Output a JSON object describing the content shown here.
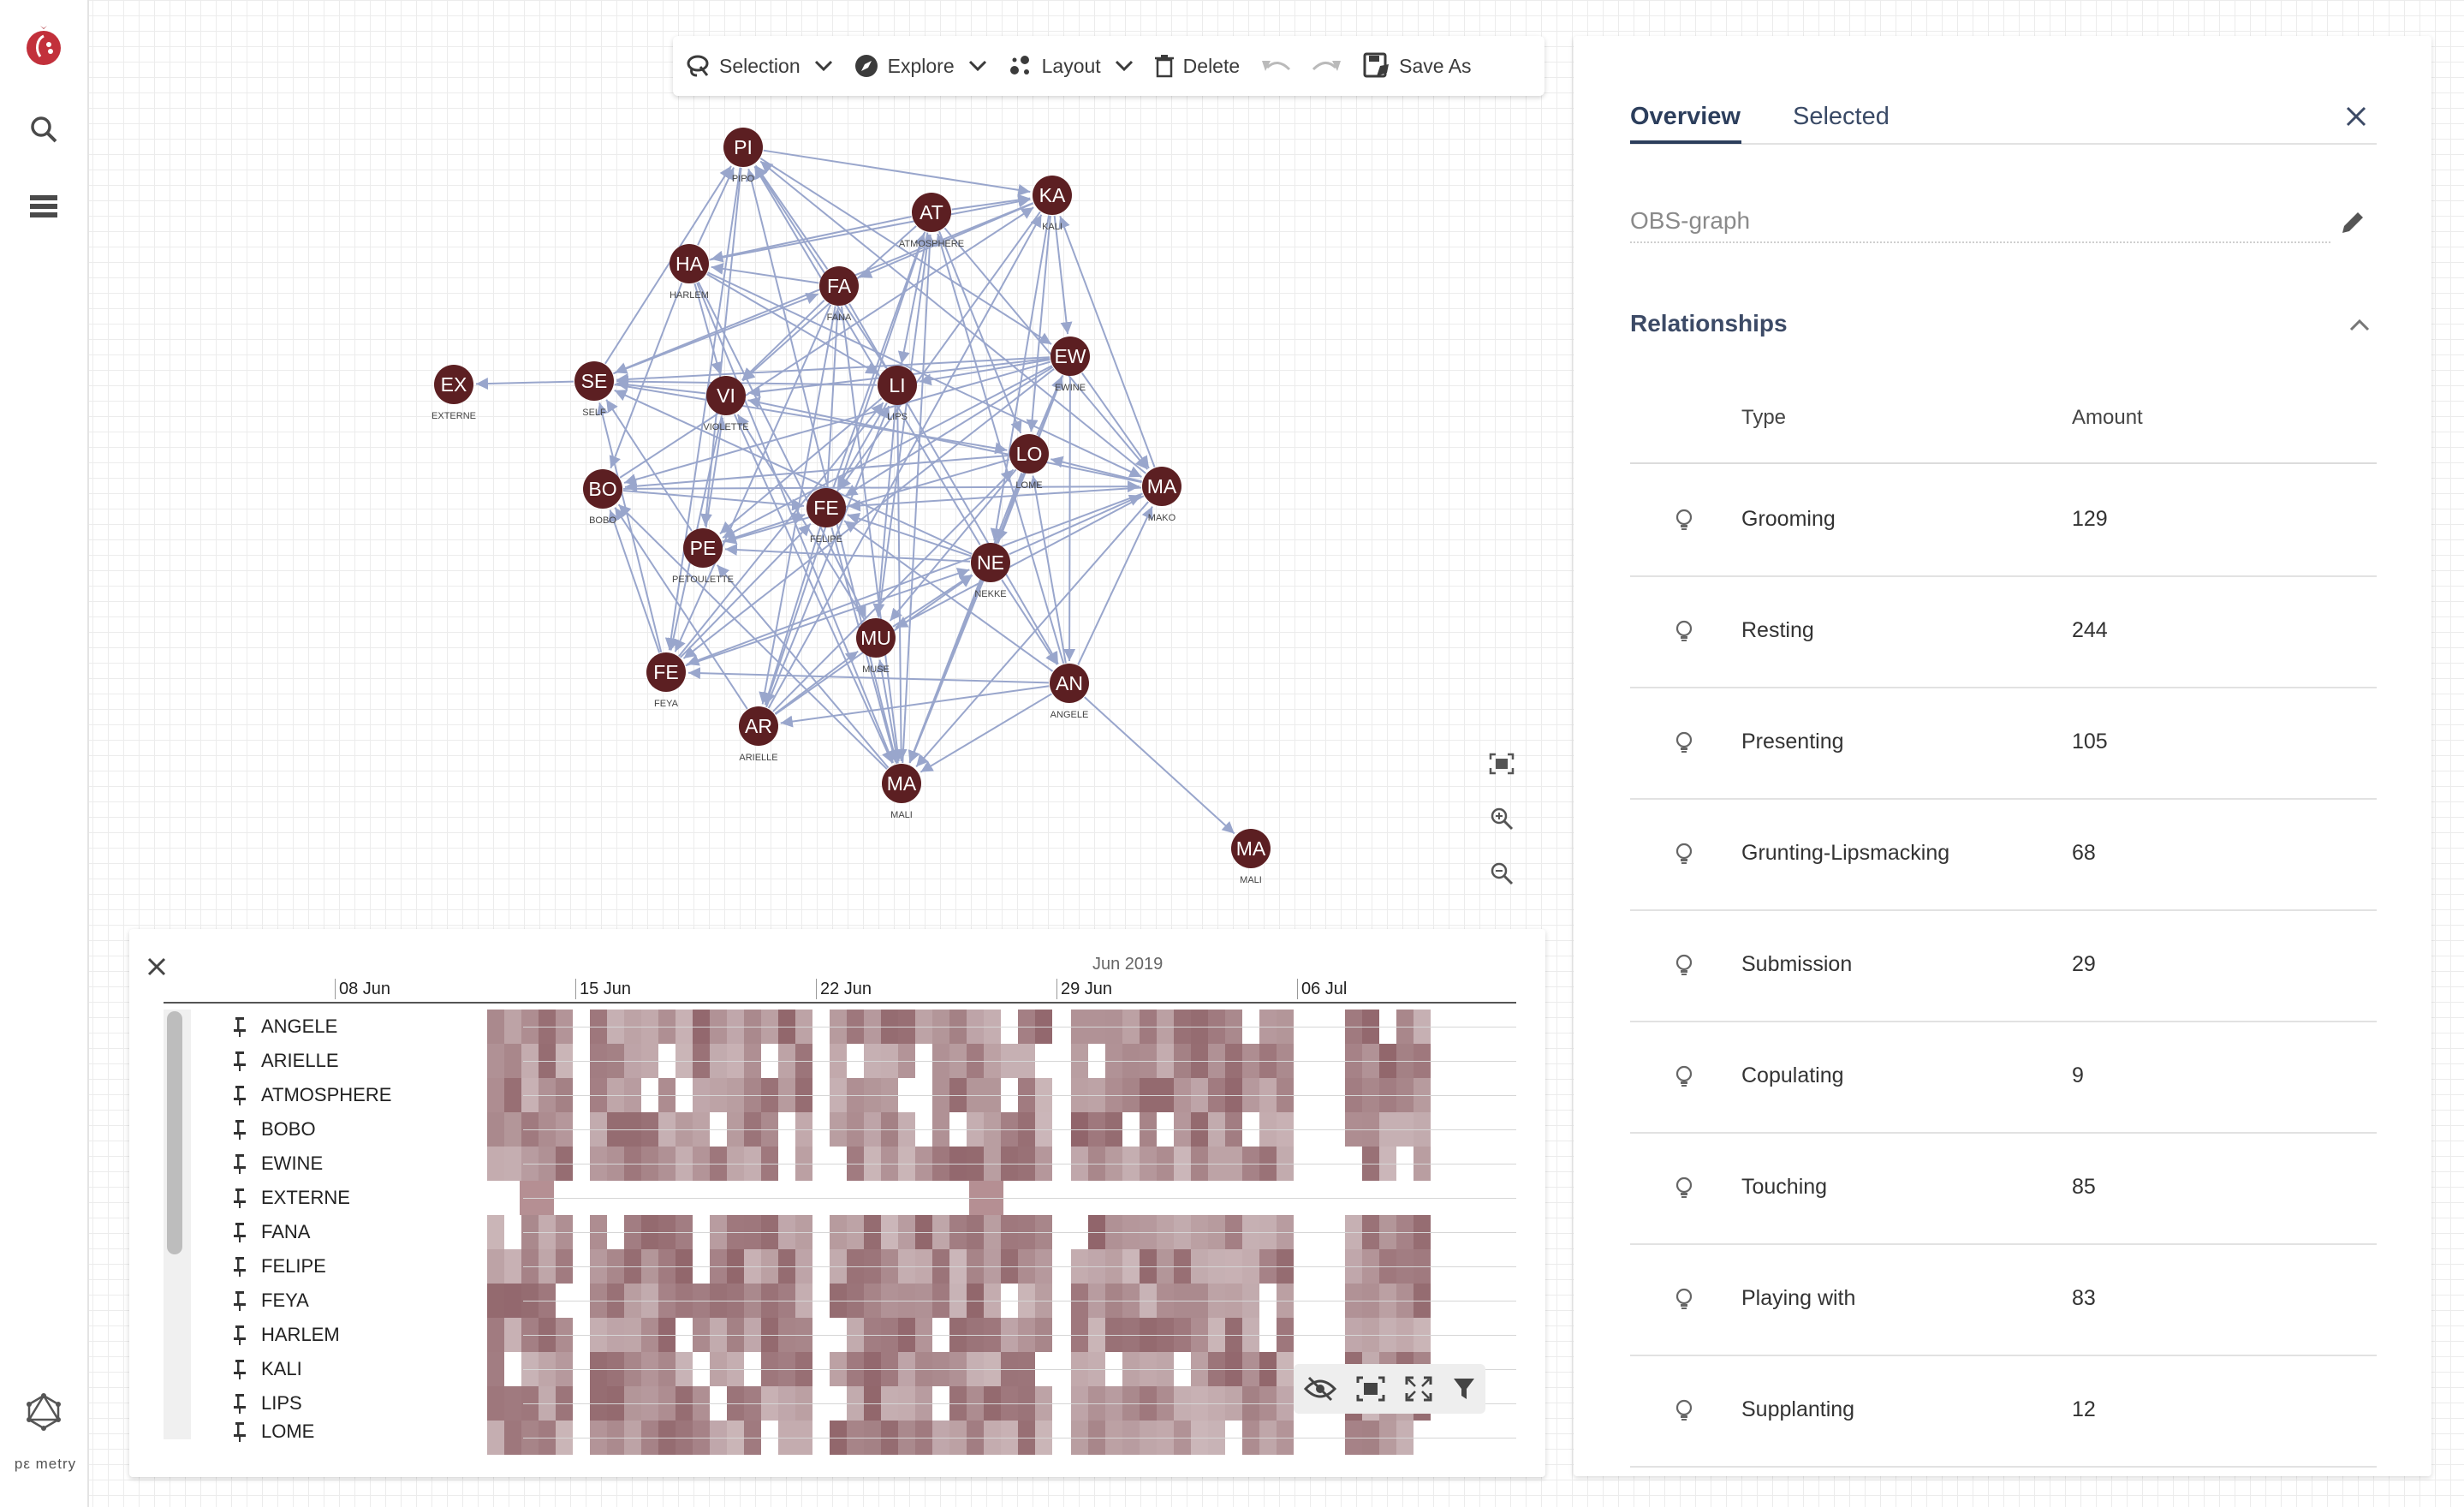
{
  "app": {
    "brand_label": "pomegranate",
    "logo_text": "pε metry"
  },
  "toolbar": {
    "selection_label": "Selection",
    "explore_label": "Explore",
    "layout_label": "Layout",
    "delete_label": "Delete",
    "save_as_label": "Save As"
  },
  "graph": {
    "nodes": [
      {
        "abbr": "PI",
        "name": "PIPO"
      },
      {
        "abbr": "KA",
        "name": "KALI"
      },
      {
        "abbr": "AT",
        "name": "ATMOSPHERE"
      },
      {
        "abbr": "HA",
        "name": "HARLEM"
      },
      {
        "abbr": "FA",
        "name": "FANA"
      },
      {
        "abbr": "EW",
        "name": "EWINE"
      },
      {
        "abbr": "EX",
        "name": "EXTERNE"
      },
      {
        "abbr": "SE",
        "name": "SELF"
      },
      {
        "abbr": "VI",
        "name": "VIOLETTE"
      },
      {
        "abbr": "LI",
        "name": "LIPS"
      },
      {
        "abbr": "LO",
        "name": "LOME"
      },
      {
        "abbr": "MA",
        "name": "MAKO"
      },
      {
        "abbr": "BO",
        "name": "BOBO"
      },
      {
        "abbr": "FE",
        "name": "FELIPE"
      },
      {
        "abbr": "PE",
        "name": "PETOULETTE"
      },
      {
        "abbr": "NE",
        "name": "NEKKE"
      },
      {
        "abbr": "MU",
        "name": "MUSE"
      },
      {
        "abbr": "AN",
        "name": "ANGELE"
      },
      {
        "abbr": "FE",
        "name": "FEYA"
      },
      {
        "abbr": "AR",
        "name": "ARIELLE"
      },
      {
        "abbr": "MA",
        "name": "MALI"
      },
      {
        "abbr": "MA",
        "name": "MALI"
      }
    ],
    "node_color": "#5c1f22",
    "edge_color": "#99a6cc"
  },
  "timeline": {
    "month_label": "Jun 2019",
    "dates": [
      "08 Jun",
      "15 Jun",
      "22 Jun",
      "29 Jun",
      "06 Jul"
    ],
    "rows": [
      "ANGELE",
      "ARIELLE",
      "ATMOSPHERE",
      "BOBO",
      "EWINE",
      "EXTERNE",
      "FANA",
      "FELIPE",
      "FEYA",
      "HARLEM",
      "KALI",
      "LIPS",
      "LOME"
    ],
    "cell_color": "#8b5d63"
  },
  "panel": {
    "tab_overview": "Overview",
    "tab_selected": "Selected",
    "graph_name_placeholder": "OBS-graph",
    "relationships_title": "Relationships",
    "col_type": "Type",
    "col_amount": "Amount",
    "relationships": [
      {
        "type": "Grooming",
        "amount": "129"
      },
      {
        "type": "Resting",
        "amount": "244"
      },
      {
        "type": "Presenting",
        "amount": "105"
      },
      {
        "type": "Grunting-Lipsmacking",
        "amount": "68"
      },
      {
        "type": "Submission",
        "amount": "29"
      },
      {
        "type": "Copulating",
        "amount": "9"
      },
      {
        "type": "Touching",
        "amount": "85"
      },
      {
        "type": "Playing with",
        "amount": "83"
      },
      {
        "type": "Supplanting",
        "amount": "12"
      }
    ]
  },
  "colors": {
    "accent": "#2c3e5c",
    "brand": "#c2303b"
  }
}
